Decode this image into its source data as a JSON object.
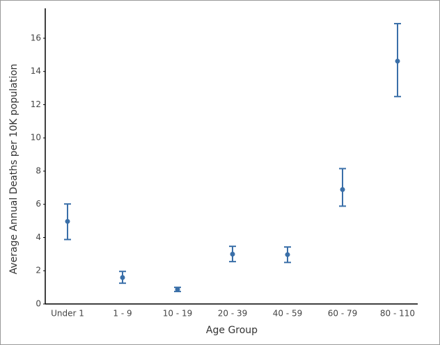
{
  "chart_data": {
    "type": "errorbar",
    "x_label": "Age Group",
    "y_label": "Average Annual Deaths per 10K population",
    "categories": [
      "Under 1",
      "1 - 9",
      "10 - 19",
      "20 - 39",
      "40 - 59",
      "60 - 79",
      "80 - 110"
    ],
    "values": [
      4.97,
      1.59,
      0.88,
      3.0,
      2.97,
      6.89,
      14.62
    ],
    "lower": [
      3.88,
      1.25,
      0.75,
      2.55,
      2.5,
      5.89,
      12.49
    ],
    "upper": [
      6.02,
      1.96,
      1.0,
      3.47,
      3.43,
      8.15,
      16.88
    ],
    "color": "#3a6fa8",
    "ylim": [
      0,
      17.8
    ],
    "yticks": [
      0,
      2,
      4,
      6,
      8,
      10,
      12,
      14,
      16
    ],
    "grid": false
  }
}
